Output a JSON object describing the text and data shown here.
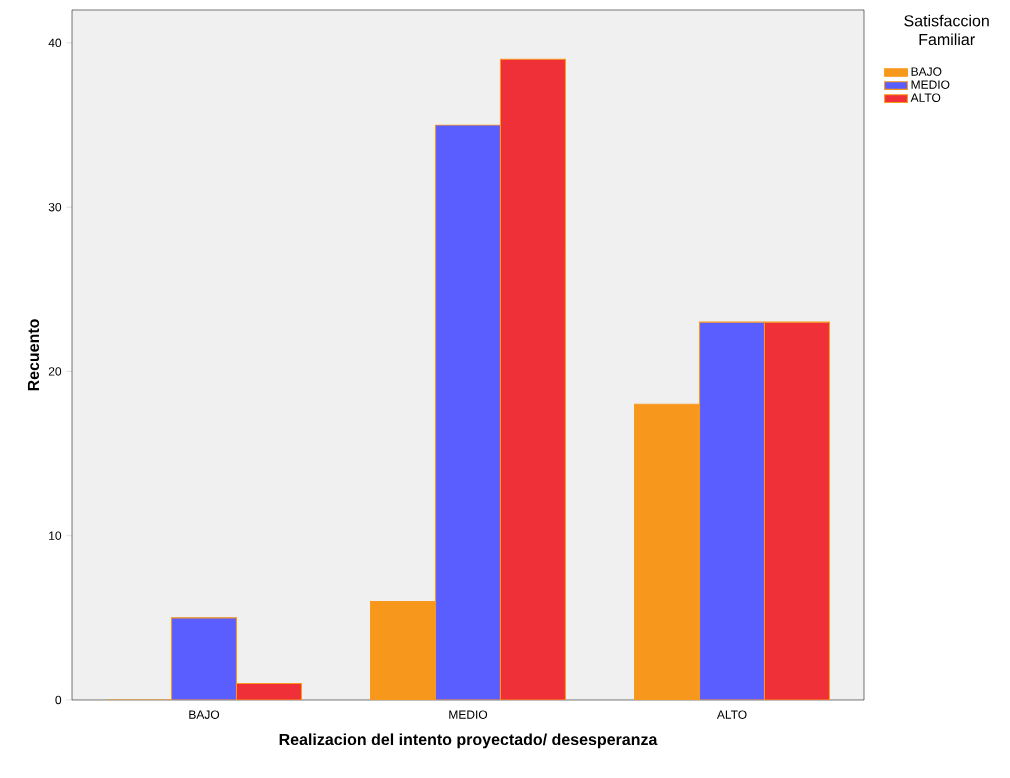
{
  "chart_data": {
    "type": "bar",
    "xlabel": "Realizacion del intento proyectado/ desesperanza",
    "ylabel": "Recuento",
    "legend_title": "Satisfaccion Familiar",
    "categories": [
      "BAJO",
      "MEDIO",
      "ALTO"
    ],
    "series": [
      {
        "name": "BAJO",
        "color": "#f7981d",
        "values": [
          0,
          6,
          18
        ]
      },
      {
        "name": "MEDIO",
        "color": "#5a5eff",
        "values": [
          5,
          35,
          23
        ]
      },
      {
        "name": "ALTO",
        "color": "#ef3038",
        "values": [
          1,
          39,
          23
        ]
      }
    ],
    "ylim": [
      0,
      42
    ],
    "yticks": [
      0,
      10,
      20,
      30,
      40
    ],
    "legend": "top right"
  }
}
